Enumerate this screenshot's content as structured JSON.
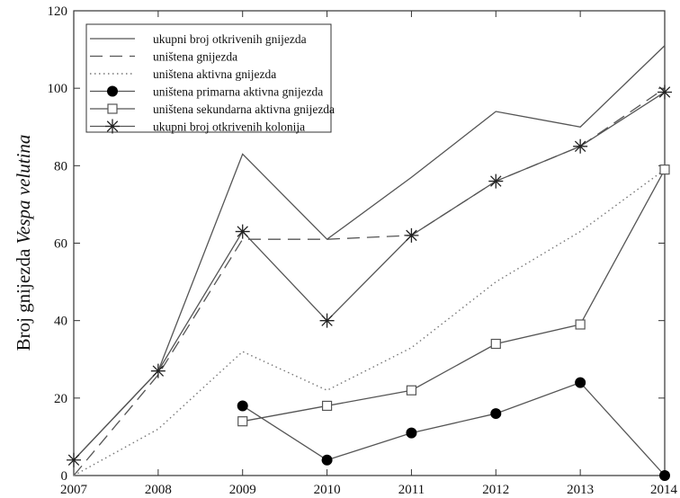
{
  "chart_data": {
    "type": "line",
    "title": "",
    "xlabel": "",
    "ylabel_prefix": "Broj gnijezda ",
    "ylabel_species": "Vespa velutina",
    "xlim": [
      2007,
      2014
    ],
    "ylim": [
      0,
      120
    ],
    "xticks": [
      "2007",
      "2008",
      "2009",
      "2010",
      "2011",
      "2012",
      "2013",
      "2014"
    ],
    "yticks": [
      "0",
      "20",
      "40",
      "60",
      "80",
      "100",
      "120"
    ],
    "grid": false,
    "legend_position": "top-left",
    "series": [
      {
        "name": "ukupni broj otkrivenih gnijezda",
        "style": "solid",
        "marker": "none",
        "x": [
          2007,
          2008,
          2009,
          2010,
          2011,
          2012,
          2013,
          2014
        ],
        "y": [
          4,
          27,
          83,
          61,
          77,
          94,
          90,
          111
        ]
      },
      {
        "name": "uništena gnijezda",
        "style": "dashed",
        "marker": "none",
        "x": [
          2007,
          2008,
          2009,
          2010,
          2011,
          2012,
          2013,
          2014
        ],
        "y": [
          0,
          26,
          61,
          61,
          62,
          76,
          85,
          100
        ]
      },
      {
        "name": "uništena aktivna gnijezda",
        "style": "dotted",
        "marker": "none",
        "x": [
          2007,
          2008,
          2009,
          2010,
          2011,
          2012,
          2013,
          2014
        ],
        "y": [
          0,
          12,
          32,
          22,
          33,
          50,
          63,
          79
        ]
      },
      {
        "name": "uništena primarna aktivna gnijezda",
        "style": "solid",
        "marker": "filled-circle",
        "x": [
          2009,
          2010,
          2011,
          2012,
          2013,
          2014
        ],
        "y": [
          18,
          4,
          11,
          16,
          24,
          0
        ]
      },
      {
        "name": "uništena sekundarna aktivna gnijezda",
        "style": "solid",
        "marker": "open-square",
        "x": [
          2009,
          2010,
          2011,
          2012,
          2013,
          2014
        ],
        "y": [
          14,
          18,
          22,
          34,
          39,
          79
        ]
      },
      {
        "name": "ukupni broj otkrivenih kolonija",
        "style": "solid",
        "marker": "asterisk",
        "x": [
          2007,
          2008,
          2009,
          2010,
          2011,
          2012,
          2013,
          2014
        ],
        "y": [
          4,
          27,
          63,
          40,
          62,
          76,
          85,
          99
        ]
      }
    ]
  }
}
